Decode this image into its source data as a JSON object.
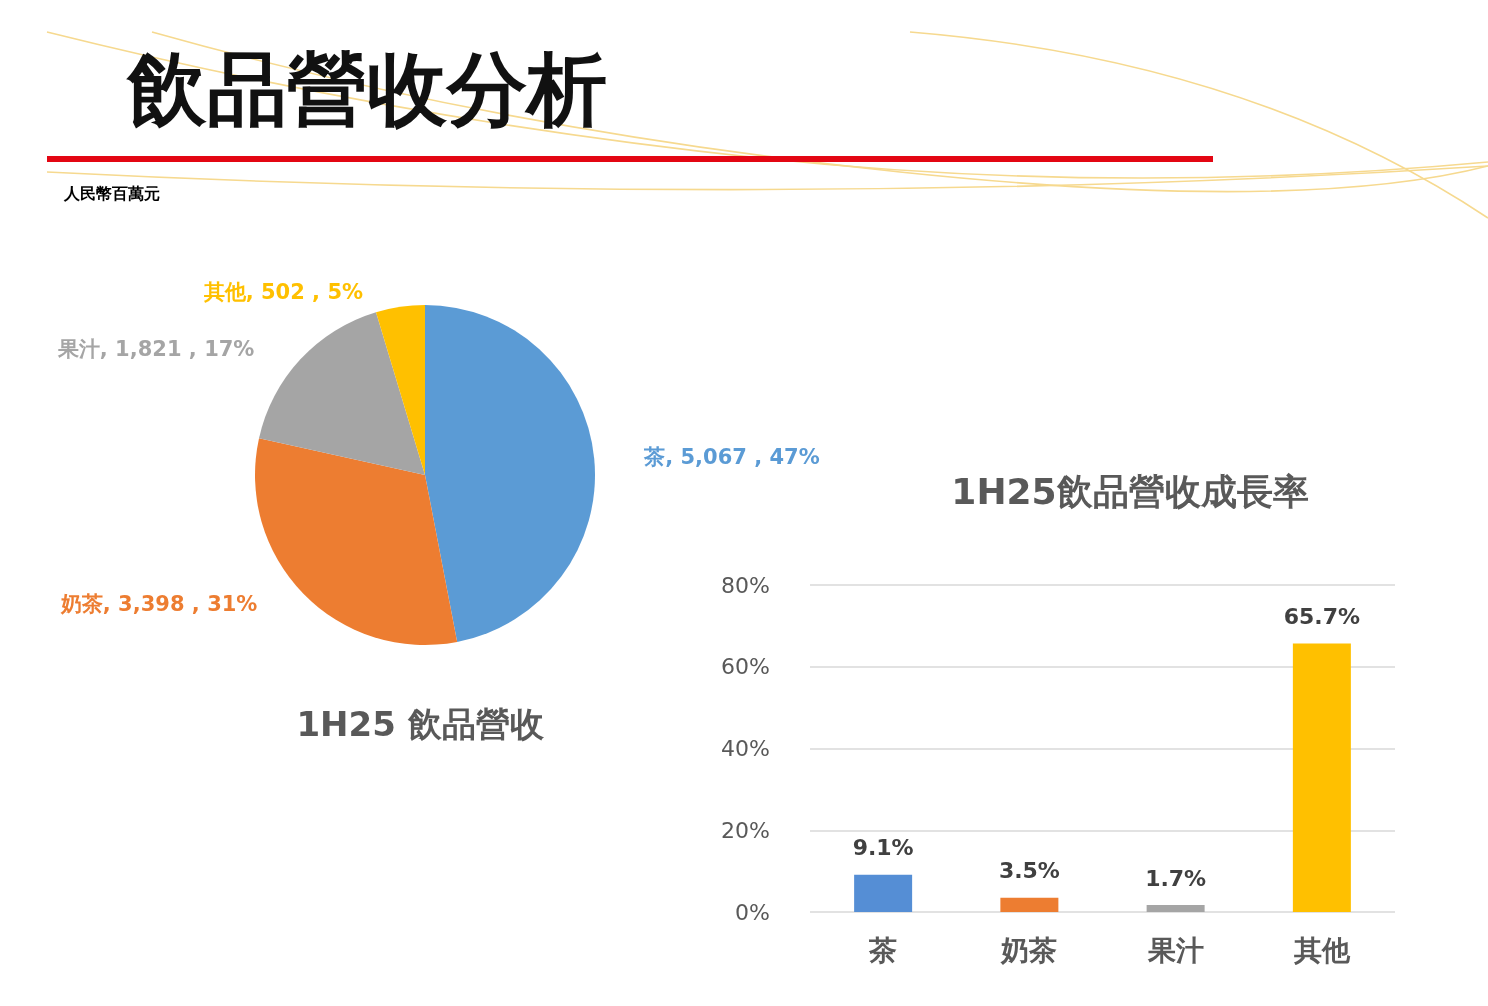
{
  "chart_data": [
    {
      "type": "other",
      "title": "飲品營收分析"
    },
    {
      "type": "pie",
      "title": "1H25 飲品營收",
      "annotations": [
        "人民幣百萬元"
      ],
      "categories": [
        "茶",
        "奶茶",
        "果汁",
        "其他"
      ],
      "values": [
        5067,
        3398,
        1821,
        502
      ],
      "colors": [
        "#5b9bd5",
        "#ed7d31",
        "#a5a5a5",
        "#ffc000"
      ],
      "value_labels": [
        "5,067 , 47%",
        "3,398 , 31%",
        "1,821 , 17%",
        "502 , 5%"
      ]
    },
    {
      "type": "bar",
      "title": "1H25飲品營收成長率",
      "categories": [
        "茶",
        "奶茶",
        "果汁",
        "其他"
      ],
      "values": [
        9.1,
        3.5,
        1.7,
        65.7
      ],
      "colors": [
        "#558ed5",
        "#ed7d31",
        "#a5a5a5",
        "#ffc000"
      ],
      "value_labels": [
        "9.1%",
        "3.5%",
        "1.7%",
        "65.7%"
      ],
      "ylim": [
        0,
        80
      ],
      "yticks": [
        {
          "value": 0,
          "label": "0%"
        },
        {
          "value": 20,
          "label": "20%"
        },
        {
          "value": 40,
          "label": "40%"
        },
        {
          "value": 60,
          "label": "60%"
        },
        {
          "value": 80,
          "label": "80%"
        }
      ],
      "grid": "y"
    }
  ]
}
